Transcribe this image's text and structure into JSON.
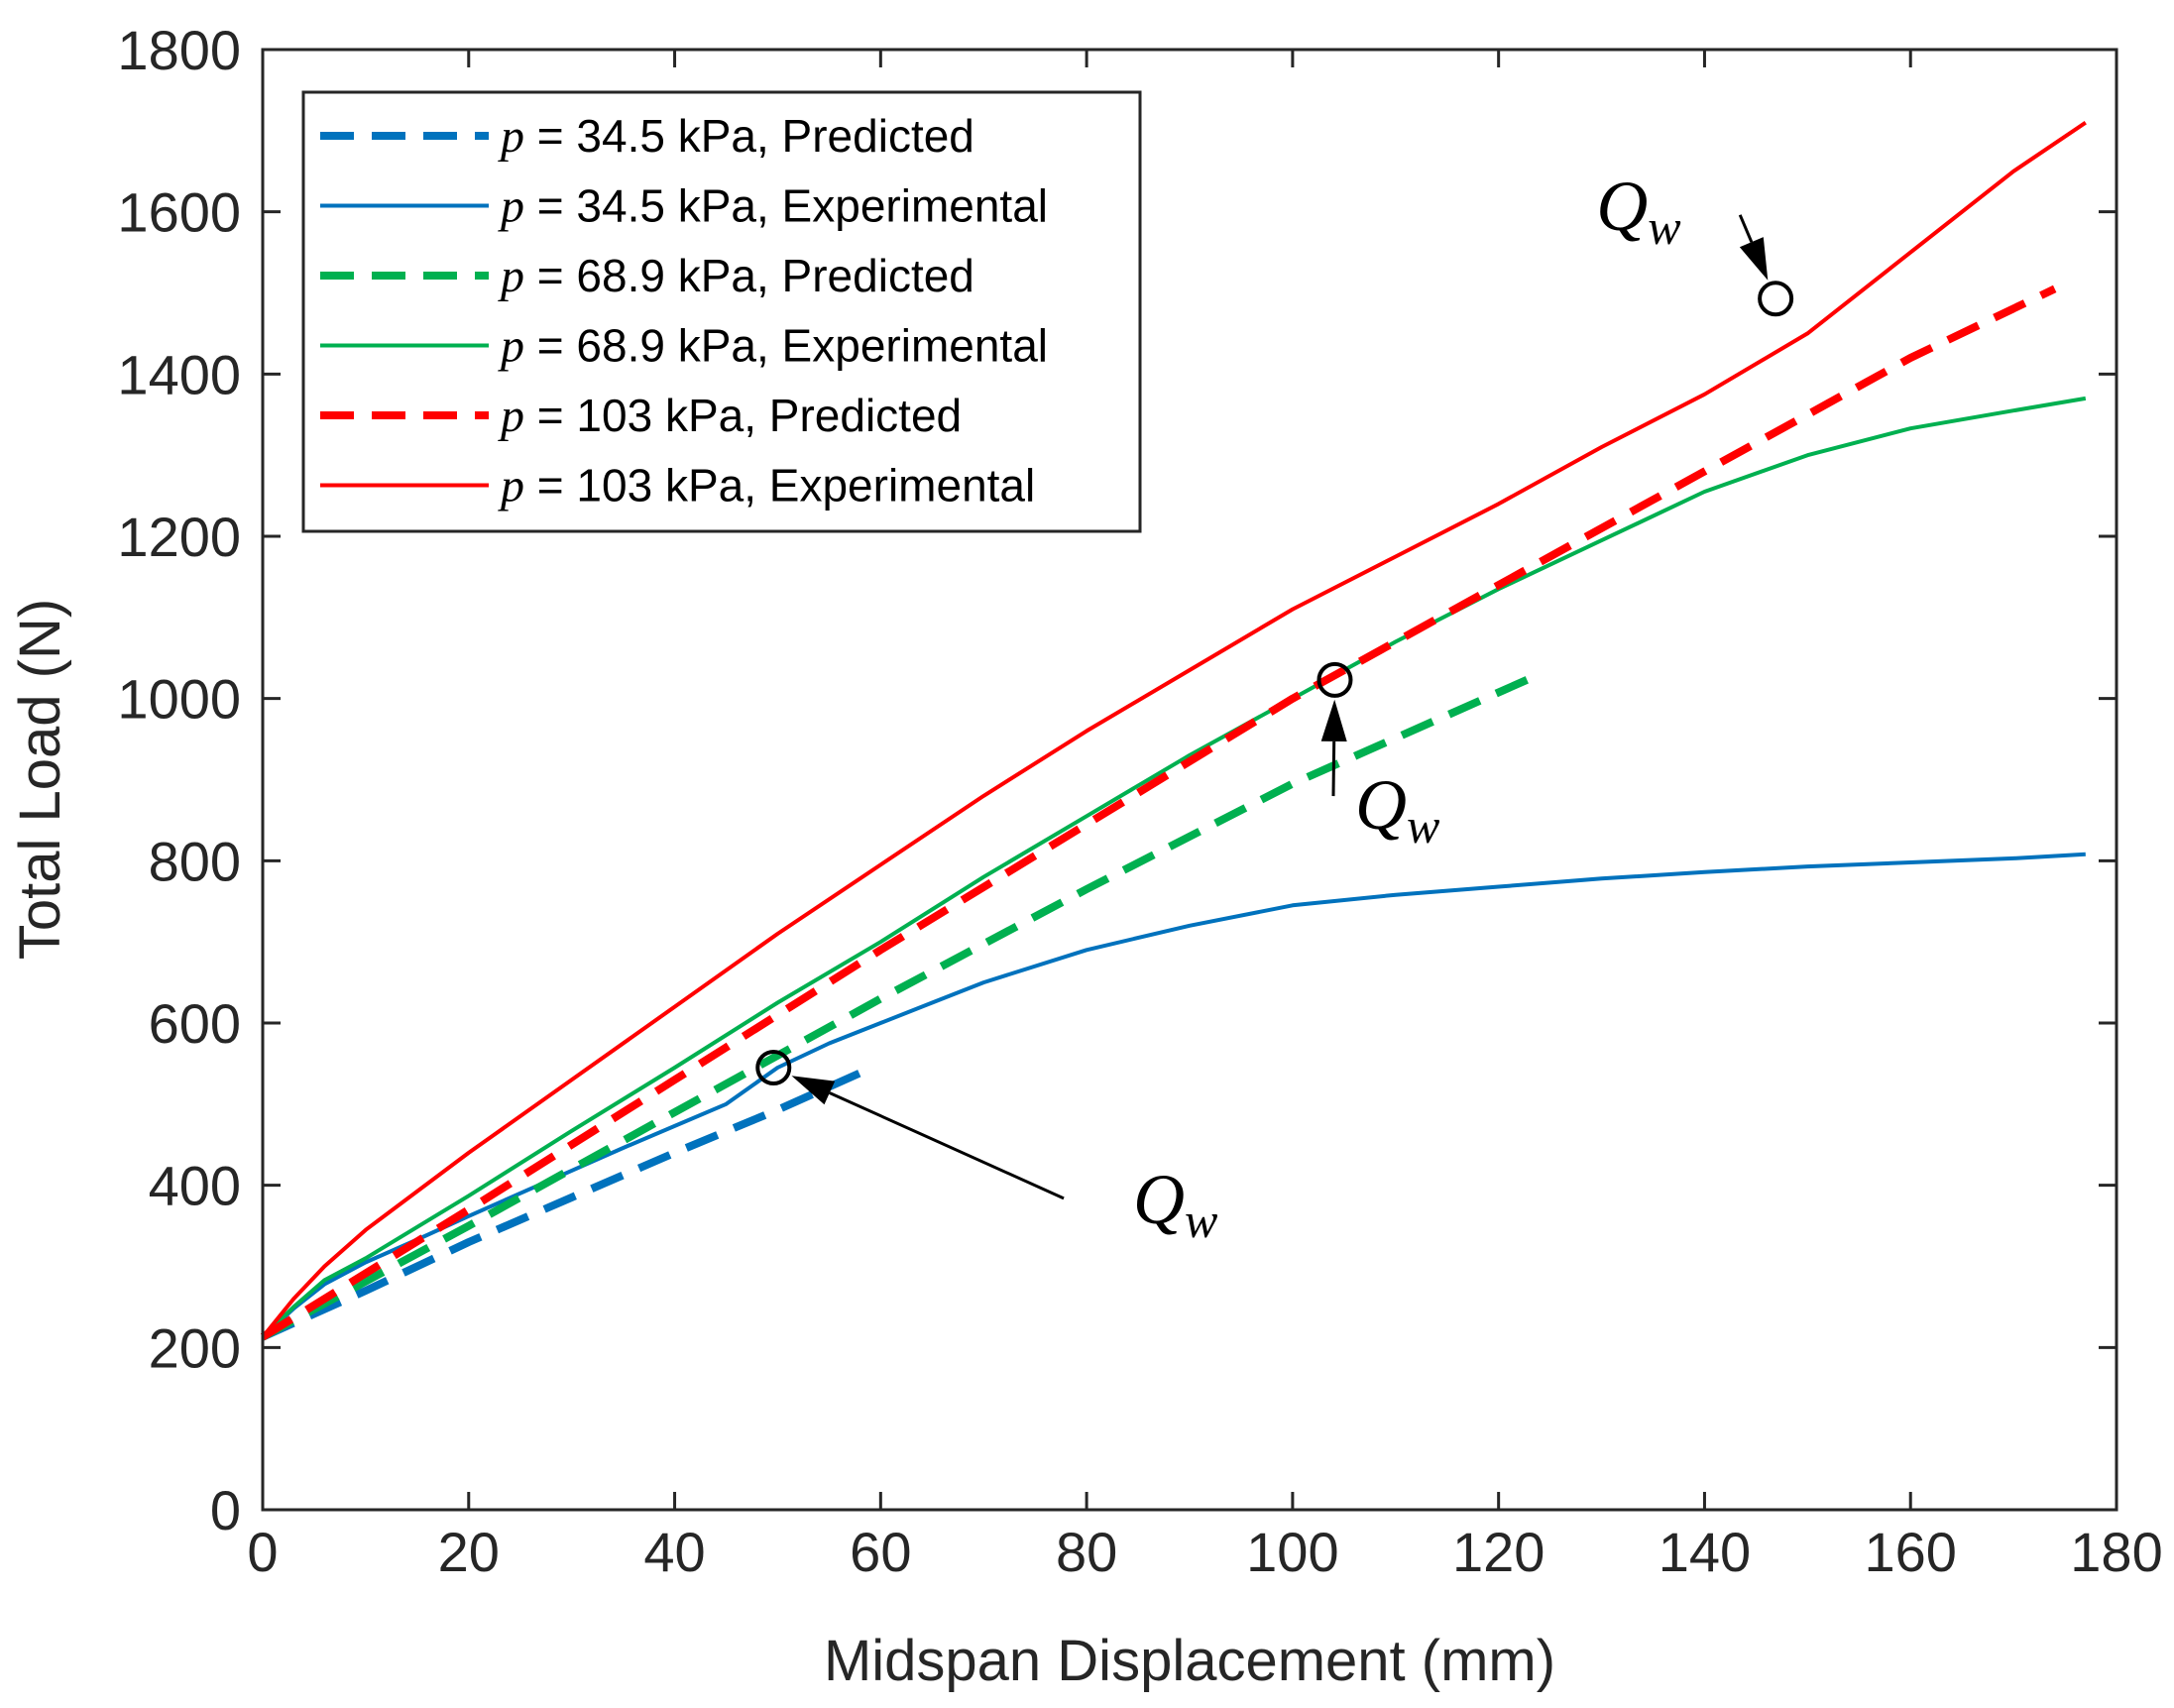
{
  "chart_data": {
    "type": "line",
    "title": "",
    "xlabel": "Midspan Displacement (mm)",
    "ylabel": "Total Load (N)",
    "xlim": [
      0,
      180
    ],
    "ylim": [
      0,
      1800
    ],
    "xticks": [
      0,
      20,
      40,
      60,
      80,
      100,
      120,
      140,
      160,
      180
    ],
    "yticks": [
      0,
      200,
      400,
      600,
      800,
      1000,
      1200,
      1400,
      1600,
      1800
    ],
    "grid": false,
    "legend_position": "top-left",
    "series": [
      {
        "name": "p = 34.5 kPa, Predicted",
        "legend_var": "p",
        "legend_rest": " = 34.5 kPa, Predicted",
        "style": "dashed",
        "color": "#0072BD",
        "x": [
          0,
          10,
          20,
          30,
          40,
          50,
          59
        ],
        "y": [
          213,
          270,
          330,
          385,
          440,
          493,
          544
        ]
      },
      {
        "name": "p = 34.5 kPa, Experimental",
        "legend_var": "p",
        "legend_rest": " = 34.5 kPa, Experimental",
        "style": "solid",
        "color": "#0072BD",
        "x": [
          0,
          3,
          6,
          10,
          15,
          20,
          25,
          30,
          35,
          40,
          45,
          50,
          55,
          60,
          65,
          70,
          80,
          90,
          100,
          110,
          120,
          130,
          140,
          150,
          160,
          170,
          177
        ],
        "y": [
          213,
          248,
          278,
          305,
          333,
          362,
          390,
          418,
          446,
          473,
          500,
          545,
          575,
          600,
          625,
          650,
          690,
          720,
          745,
          758,
          768,
          778,
          786,
          793,
          798,
          803,
          808
        ]
      },
      {
        "name": "p = 68.9 kPa, Predicted",
        "legend_var": "p",
        "legend_rest": " = 68.9 kPa, Predicted",
        "style": "dashed",
        "color": "#00B050",
        "x": [
          0,
          20,
          40,
          60,
          80,
          100,
          124
        ],
        "y": [
          213,
          350,
          490,
          630,
          765,
          895,
          1030
        ]
      },
      {
        "name": "p = 68.9 kPa, Experimental",
        "legend_var": "p",
        "legend_rest": " = 68.9 kPa, Experimental",
        "style": "solid",
        "color": "#00B050",
        "x": [
          0,
          3,
          6,
          10,
          20,
          30,
          40,
          50,
          60,
          70,
          80,
          90,
          100,
          110,
          120,
          130,
          140,
          150,
          160,
          170,
          177
        ],
        "y": [
          213,
          250,
          283,
          310,
          387,
          467,
          545,
          625,
          700,
          780,
          855,
          930,
          1000,
          1070,
          1135,
          1195,
          1255,
          1300,
          1333,
          1355,
          1370
        ]
      },
      {
        "name": "p = 103 kPa, Predicted",
        "legend_var": "p",
        "legend_rest": " = 103 kPa, Predicted",
        "style": "dashed",
        "color": "#FF0000",
        "x": [
          0,
          20,
          40,
          60,
          80,
          100,
          120,
          140,
          160,
          174
        ],
        "y": [
          213,
          370,
          530,
          690,
          845,
          1000,
          1140,
          1280,
          1420,
          1505
        ]
      },
      {
        "name": "p = 103 kPa, Experimental",
        "legend_var": "p",
        "legend_rest": " = 103 kPa, Experimental",
        "style": "solid",
        "color": "#FF0000",
        "x": [
          0,
          3,
          6,
          10,
          20,
          30,
          40,
          50,
          60,
          70,
          80,
          90,
          100,
          110,
          120,
          130,
          140,
          150,
          160,
          170,
          177
        ],
        "y": [
          213,
          260,
          300,
          345,
          440,
          530,
          620,
          710,
          795,
          880,
          960,
          1035,
          1110,
          1175,
          1240,
          1310,
          1375,
          1450,
          1550,
          1650,
          1710
        ]
      }
    ],
    "annotations": [
      {
        "label_main": "Q",
        "label_sub": "w",
        "point": [
          146.9,
          1493
        ],
        "text_at": [
          142,
          1590
        ]
      },
      {
        "label_main": "Q",
        "label_sub": "w",
        "point": [
          104.1,
          1023
        ],
        "text_at": [
          108,
          870
        ]
      },
      {
        "label_main": "Q",
        "label_sub": "w",
        "point": [
          49.6,
          545
        ],
        "text_at": [
          85,
          390
        ]
      }
    ]
  }
}
